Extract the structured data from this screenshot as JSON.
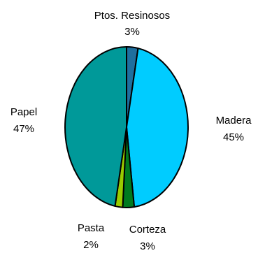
{
  "chart_data": {
    "type": "pie",
    "title": "",
    "start_angle_deg": 0,
    "direction": "clockwise",
    "slices": [
      {
        "label": "Ptos. Resinosos",
        "value": 3,
        "percent_label": "3%",
        "color": "#1F6F9E"
      },
      {
        "label": "Madera",
        "value": 45,
        "percent_label": "45%",
        "color": "#00CCFF"
      },
      {
        "label": "Corteza",
        "value": 3,
        "percent_label": "3%",
        "color": "#007A1F"
      },
      {
        "label": "Pasta",
        "value": 2,
        "percent_label": "2%",
        "color": "#99CC00"
      },
      {
        "label": "Papel",
        "value": 47,
        "percent_label": "47%",
        "color": "#009999"
      }
    ]
  }
}
